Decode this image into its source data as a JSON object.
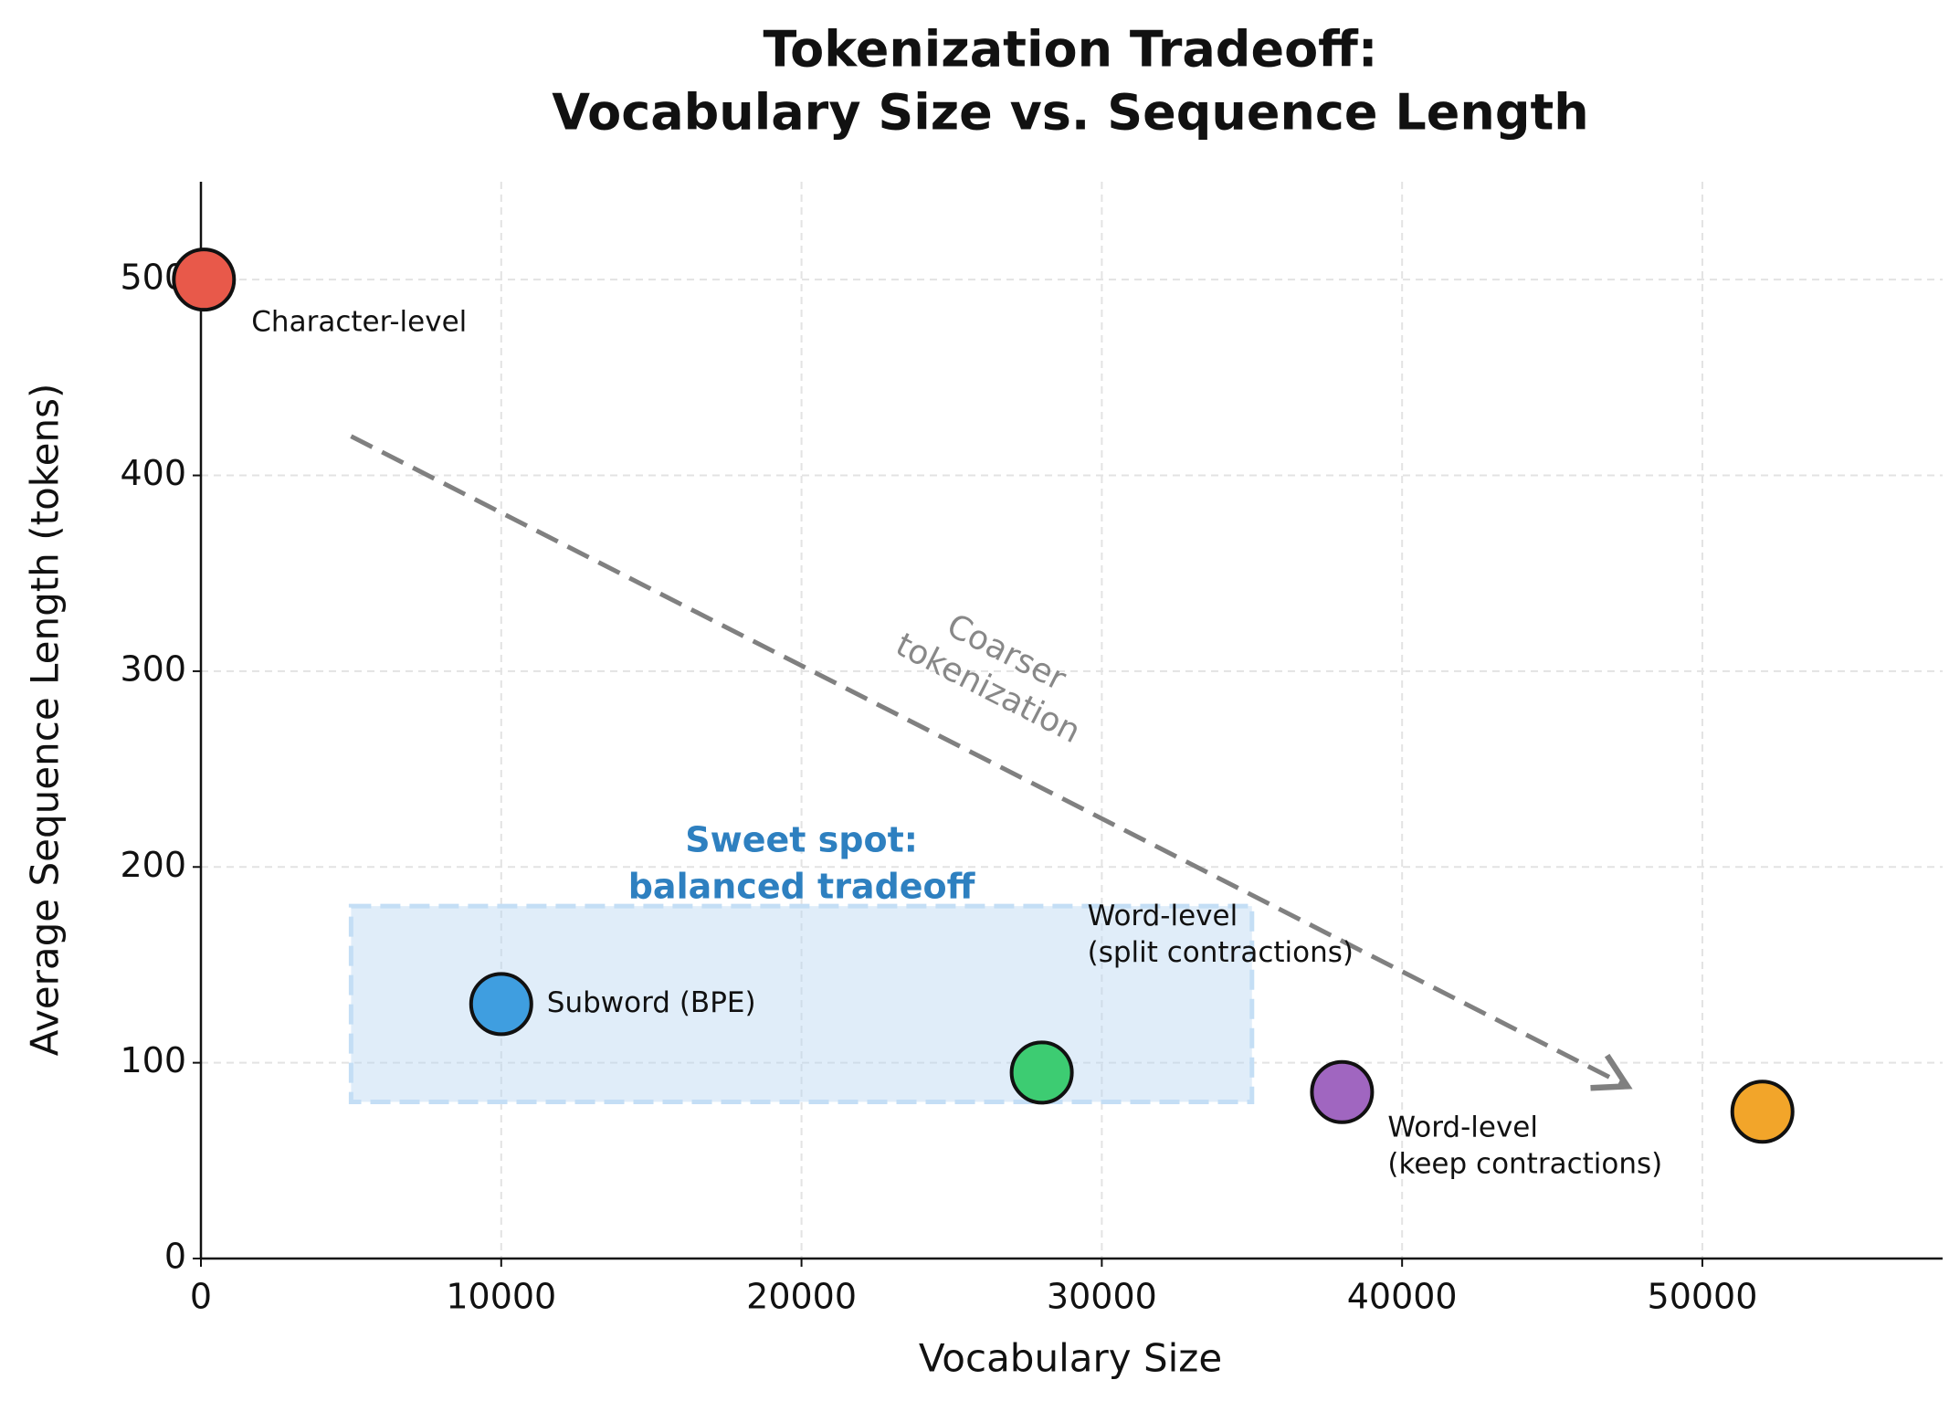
{
  "chart_data": {
    "type": "scatter",
    "title": [
      "Tokenization Tradeoff:",
      "Vocabulary Size vs. Sequence Length"
    ],
    "xlabel": "Vocabulary Size",
    "ylabel": "Average Sequence Length (tokens)",
    "xlim": [
      0,
      58000
    ],
    "xticks": [
      0,
      10000,
      20000,
      30000,
      40000,
      50000
    ],
    "ylim": [
      0,
      550
    ],
    "yticks": [
      0,
      100,
      200,
      300,
      400,
      500
    ],
    "grid": true,
    "points": [
      {
        "x": 100,
        "y": 500,
        "color": "#e8594a",
        "label": [
          "Character-level"
        ]
      },
      {
        "x": 10000,
        "y": 130,
        "color": "#3f9ee0",
        "label": [
          "Subword (BPE)"
        ]
      },
      {
        "x": 28000,
        "y": 95,
        "color": "#3dcc72",
        "label": [
          "Word-level",
          "(split contractions)"
        ]
      },
      {
        "x": 38000,
        "y": 85,
        "color": "#a066c0",
        "label": [
          "Word-level",
          "(keep contractions)"
        ]
      },
      {
        "x": 52000,
        "y": 75,
        "color": "#f2a52a",
        "label": null
      }
    ],
    "highlight_region": {
      "xlim": [
        5000,
        35000
      ],
      "ylim": [
        80,
        180
      ],
      "label": [
        "Sweet spot:",
        "balanced tradeoff"
      ]
    },
    "arrow": {
      "from": [
        5000,
        420
      ],
      "to": [
        47500,
        88
      ],
      "label": [
        "Coarser",
        "tokenization"
      ]
    }
  }
}
